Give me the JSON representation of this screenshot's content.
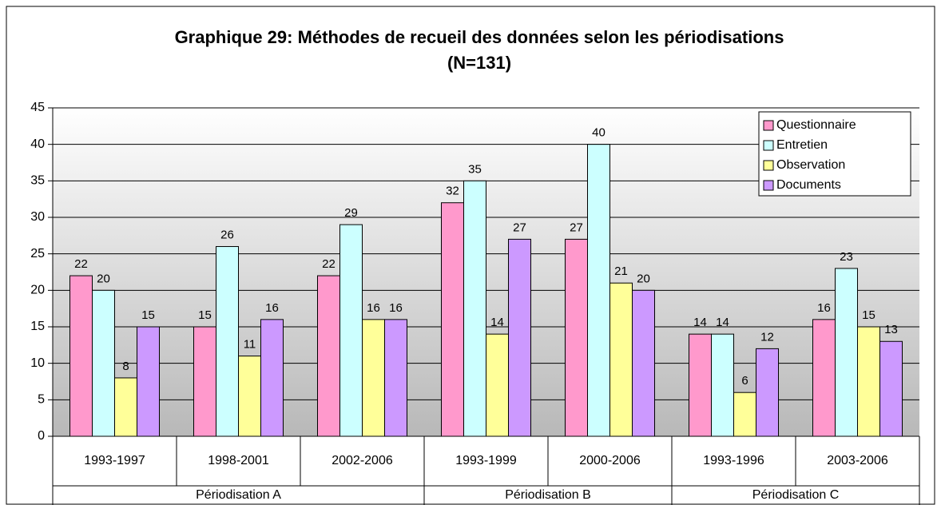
{
  "chart_data": {
    "type": "bar",
    "title": "Graphique 29: Méthodes de recueil des données selon les périodisations",
    "subtitle": "(N=131)",
    "categories": [
      "1993-1997",
      "1998-2001",
      "2002-2006",
      "1993-1999",
      "2000-2006",
      "1993-1996",
      "2003-2006"
    ],
    "category_groups": [
      "Périodisation A",
      "Périodisation A",
      "Périodisation A",
      "Périodisation B",
      "Périodisation B",
      "Périodisation C",
      "Périodisation C"
    ],
    "series": [
      {
        "name": "Questionnaire",
        "color": "#ff99cc",
        "values": [
          22,
          15,
          22,
          32,
          27,
          14,
          16
        ]
      },
      {
        "name": "Entretien",
        "color": "#ccffff",
        "values": [
          20,
          26,
          29,
          35,
          40,
          14,
          23
        ]
      },
      {
        "name": "Observation",
        "color": "#ffff99",
        "values": [
          8,
          11,
          16,
          14,
          21,
          6,
          15
        ]
      },
      {
        "name": "Documents",
        "color": "#cc99ff",
        "values": [
          15,
          16,
          16,
          27,
          20,
          12,
          13
        ]
      }
    ],
    "ylim": [
      0,
      45
    ],
    "yticks": [
      0,
      5,
      10,
      15,
      20,
      25,
      30,
      35,
      40,
      45
    ],
    "grid": true,
    "legend": "top-right"
  }
}
